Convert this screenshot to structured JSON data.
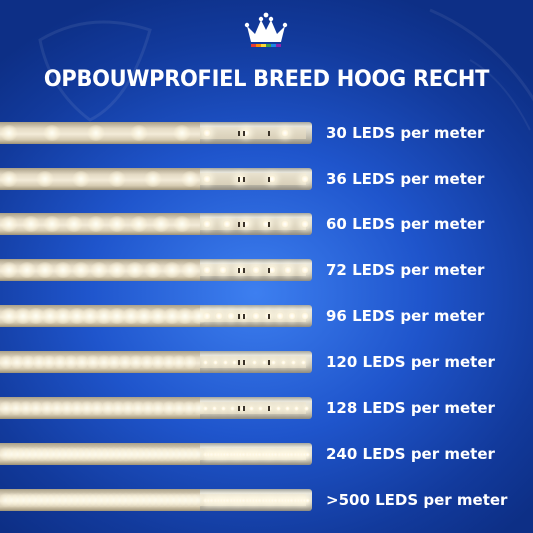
{
  "title": "OPBOUWPROFIEL BREED HOOG RECHT",
  "strips": [
    {
      "label": "30 LEDS per meter",
      "leds_per_meter": 30
    },
    {
      "label": "36 LEDS per meter",
      "leds_per_meter": 36
    },
    {
      "label": "60 LEDS per meter",
      "leds_per_meter": 60
    },
    {
      "label": "72 LEDS per meter",
      "leds_per_meter": 72
    },
    {
      "label": "96 LEDS per meter",
      "leds_per_meter": 96
    },
    {
      "label": "120 LEDS per meter",
      "leds_per_meter": 120
    },
    {
      "label": "128 LEDS per meter",
      "leds_per_meter": 128
    },
    {
      "label": "240 LEDS per meter",
      "leds_per_meter": 240
    },
    {
      "label": ">500 LEDS per meter",
      "leds_per_meter": 500
    }
  ],
  "colors": {
    "background": "#1f55cc",
    "text": "#ffffff",
    "diffuser": "#e4dac4",
    "pcb": "#e9e2cf"
  },
  "logo": {
    "icon": "crown-icon",
    "rainbow": [
      "#e53935",
      "#fb8c00",
      "#fdd835",
      "#43a047",
      "#1e88e5",
      "#8e24aa"
    ]
  }
}
